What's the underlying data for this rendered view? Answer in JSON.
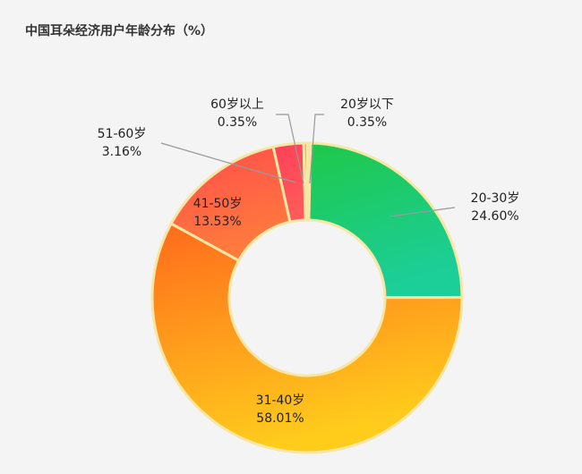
{
  "chart_data": {
    "type": "pie",
    "donut": true,
    "title": "中国耳朵经济用户年龄分布（%）",
    "categories": [
      "20岁以下",
      "20-30岁",
      "31-40岁",
      "41-50岁",
      "51-60岁",
      "60岁以上"
    ],
    "values": [
      0.35,
      24.6,
      58.01,
      13.53,
      3.16,
      0.35
    ],
    "value_labels": [
      "0.35%",
      "24.60%",
      "58.01%",
      "13.53%",
      "3.16%",
      "0.35%"
    ],
    "colors": [
      [
        "#f8e08c",
        "#f8e08c"
      ],
      [
        "#1ec84a",
        "#1cce98"
      ],
      [
        "#ff6a1c",
        "#ffcc1c"
      ],
      [
        "#ff4c4c",
        "#ff7c3c"
      ],
      [
        "#ff3f58",
        "#ff5a5a"
      ],
      [
        "#ff4f86",
        "#ff6c9a"
      ]
    ],
    "border_color": "#f7e6a4"
  }
}
